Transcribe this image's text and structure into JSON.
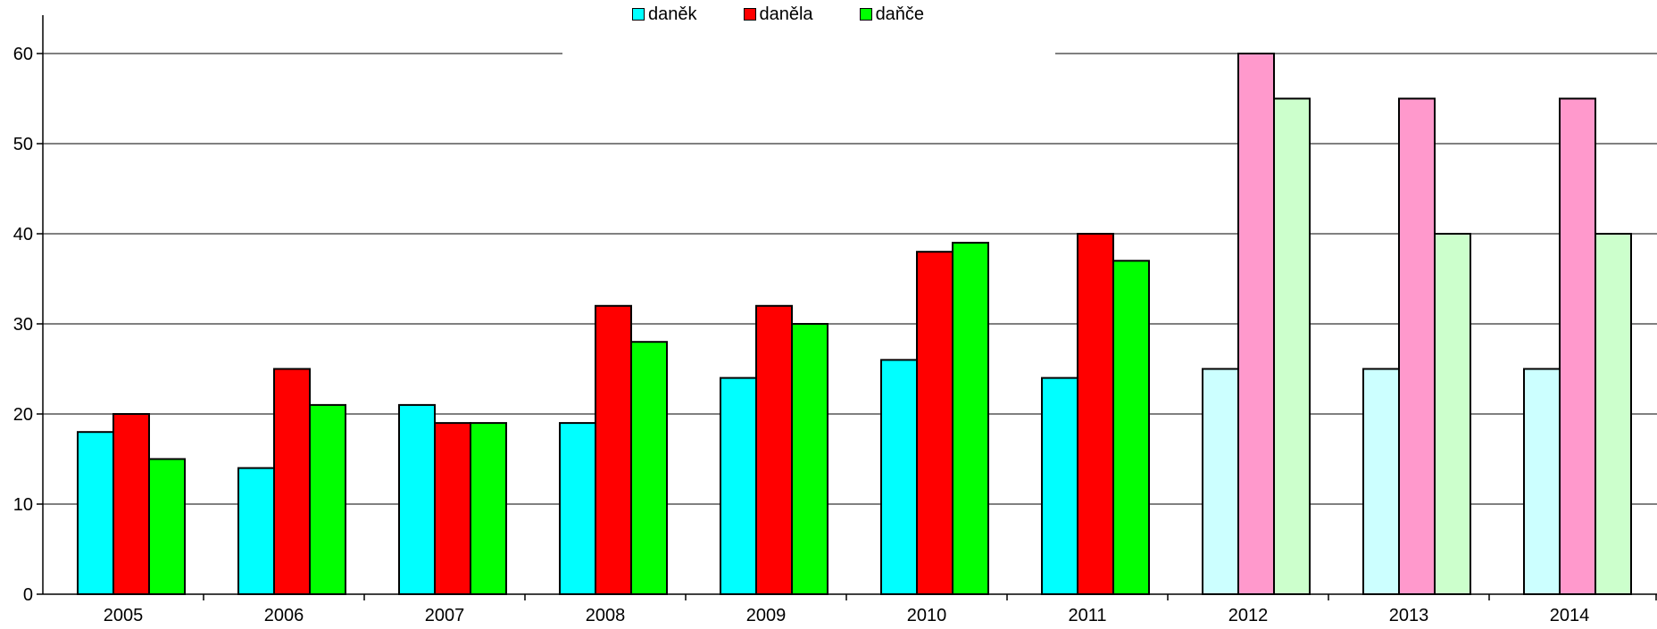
{
  "chart_data": {
    "type": "bar",
    "title": "",
    "xlabel": "",
    "ylabel": "",
    "categories": [
      "2005",
      "2006",
      "2007",
      "2008",
      "2009",
      "2010",
      "2011",
      "2012",
      "2013",
      "2014"
    ],
    "ylim": [
      0,
      60
    ],
    "yticks": [
      0,
      10,
      20,
      30,
      40,
      50,
      60
    ],
    "grid": true,
    "legend_position": "top-center",
    "projected_from_category": "2012",
    "series": [
      {
        "name": "daněk",
        "color": "#00FFFF",
        "projected_color": "#CCFFFF",
        "values": [
          18,
          14,
          21,
          19,
          24,
          26,
          24,
          25,
          25,
          25
        ]
      },
      {
        "name": "daněla",
        "color": "#FF0000",
        "projected_color": "#FF99CC",
        "values": [
          20,
          25,
          19,
          32,
          32,
          38,
          40,
          60,
          55,
          55
        ]
      },
      {
        "name": "daňče",
        "color": "#00FF00",
        "projected_color": "#CCFFCC",
        "values": [
          15,
          21,
          19,
          28,
          30,
          39,
          37,
          55,
          40,
          40
        ]
      }
    ]
  }
}
